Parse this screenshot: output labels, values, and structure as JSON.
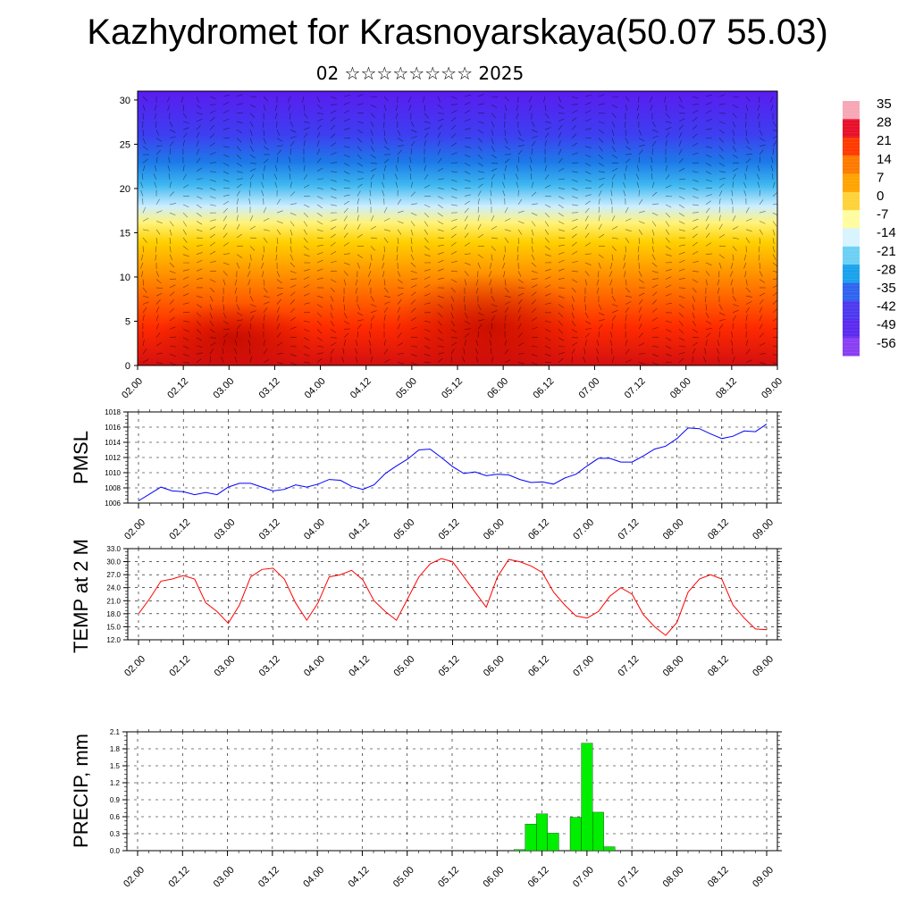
{
  "header": {
    "title": "Kazhydromet for Krasnoyarskaya(50.07 55.03)",
    "subtitle": "02 ☆☆☆☆☆☆☆☆ 2025"
  },
  "chart_data": [
    {
      "type": "heatmap",
      "title": "",
      "x_tick_labels": [
        "02.00",
        "02.12",
        "03.00",
        "03.12",
        "04.00",
        "04.12",
        "05.00",
        "05.12",
        "06.00",
        "06.12",
        "07.00",
        "07.12",
        "08.00",
        "08.12",
        "09.00"
      ],
      "y_tick_labels": [
        "0",
        "5",
        "10",
        "15",
        "20",
        "25",
        "30"
      ],
      "ylim": [
        0,
        31
      ],
      "colorbar_labels": [
        "35",
        "28",
        "21",
        "14",
        "7",
        "0",
        "-7",
        "-14",
        "-21",
        "-28",
        "-35",
        "-42",
        "-49",
        "-56"
      ],
      "colorbar_colors": [
        "#f7a7b5",
        "#e8102a",
        "#ff3a00",
        "#ff7a00",
        "#ffa300",
        "#ffd23a",
        "#fffca0",
        "#d8f4ff",
        "#6cd0f5",
        "#1aa2ec",
        "#2f64f0",
        "#4d39ef",
        "#5b2bf0",
        "#8a3ff3"
      ],
      "description_levels_temperature_profile": [
        {
          "level": 0,
          "temp": 30
        },
        {
          "level": 5,
          "temp": 26
        },
        {
          "level": 10,
          "temp": 18
        },
        {
          "level": 15,
          "temp": 0
        },
        {
          "level": 20,
          "temp": -25
        },
        {
          "level": 25,
          "temp": -50
        },
        {
          "level": 30,
          "temp": -56
        }
      ]
    },
    {
      "type": "line",
      "ylabel": "PMSL",
      "ylim": [
        1006,
        1018
      ],
      "y_tick_labels": [
        "1006",
        "1008",
        "1010",
        "1012",
        "1014",
        "1016",
        "1018"
      ],
      "x_tick_labels": [
        "02.00",
        "02.12",
        "03.00",
        "03.12",
        "04.00",
        "04.12",
        "05.00",
        "05.12",
        "06.00",
        "06.12",
        "07.00",
        "07.12",
        "08.00",
        "08.12",
        "09.00"
      ],
      "color": "#0000ff",
      "x": [
        0,
        3,
        6,
        9,
        12,
        15,
        18,
        21,
        24,
        27,
        30,
        33,
        36,
        39,
        42,
        45,
        48,
        51,
        54,
        57,
        60,
        63,
        66,
        69,
        72,
        75,
        78,
        81,
        84,
        87,
        90,
        93,
        96,
        99,
        102,
        105,
        108,
        111,
        114,
        117,
        120,
        123,
        126,
        129,
        132,
        135,
        138,
        141,
        144,
        147,
        150,
        153,
        156,
        159,
        162,
        165,
        168
      ],
      "y": [
        1006.3,
        1007.2,
        1008.1,
        1007.6,
        1007.5,
        1007.1,
        1007.4,
        1007.1,
        1008.1,
        1008.6,
        1008.6,
        1008.1,
        1007.6,
        1007.8,
        1008.4,
        1008.1,
        1008.5,
        1009.1,
        1009.0,
        1008.2,
        1007.8,
        1008.4,
        1009.9,
        1010.9,
        1011.8,
        1013.0,
        1013.1,
        1012.0,
        1010.8,
        1009.9,
        1010.1,
        1009.6,
        1009.8,
        1009.7,
        1009.1,
        1008.7,
        1008.8,
        1008.5,
        1009.3,
        1009.8,
        1010.9,
        1011.9,
        1011.9,
        1011.4,
        1011.4,
        1012.2,
        1013.1,
        1013.5,
        1014.5,
        1015.9,
        1015.8,
        1015.1,
        1014.5,
        1014.8,
        1015.5,
        1015.4,
        1016.4
      ]
    },
    {
      "type": "line",
      "ylabel": "TEMP at 2 M",
      "ylim": [
        12.0,
        33.0
      ],
      "y_tick_labels": [
        "12.0",
        "15.0",
        "18.0",
        "21.0",
        "24.0",
        "27.0",
        "30.0",
        "33.0"
      ],
      "x_tick_labels": [
        "02.00",
        "02.12",
        "03.00",
        "03.12",
        "04.00",
        "04.12",
        "05.00",
        "05.12",
        "06.00",
        "06.12",
        "07.00",
        "07.12",
        "08.00",
        "08.12",
        "09.00"
      ],
      "color": "#ff0000",
      "x": [
        0,
        3,
        6,
        9,
        12,
        15,
        18,
        21,
        24,
        27,
        30,
        33,
        36,
        39,
        42,
        45,
        48,
        51,
        54,
        57,
        60,
        63,
        66,
        69,
        72,
        75,
        78,
        81,
        84,
        87,
        90,
        93,
        96,
        99,
        102,
        105,
        108,
        111,
        114,
        117,
        120,
        123,
        126,
        129,
        132,
        135,
        138,
        141,
        144,
        147,
        150,
        153,
        156,
        159,
        162,
        165,
        168
      ],
      "y": [
        18.0,
        21.5,
        25.5,
        26.0,
        26.8,
        26.0,
        20.5,
        18.5,
        15.8,
        20.0,
        26.5,
        28.2,
        28.5,
        26.0,
        20.5,
        16.5,
        20.5,
        26.5,
        27.0,
        28.0,
        25.8,
        21.0,
        18.5,
        16.5,
        21.5,
        26.5,
        29.5,
        30.7,
        30.0,
        26.5,
        23.0,
        19.5,
        26.5,
        30.5,
        30.0,
        29.0,
        27.5,
        23.0,
        20.0,
        17.5,
        17.0,
        18.5,
        22.0,
        24.0,
        22.5,
        17.8,
        15.0,
        13.0,
        16.0,
        23.0,
        26.0,
        27.0,
        26.0,
        20.0,
        17.0,
        14.5,
        14.3
      ]
    },
    {
      "type": "bar",
      "ylabel": "PRECIP, mm",
      "ylim": [
        0.0,
        2.1
      ],
      "y_tick_labels": [
        "0.0",
        "0.3",
        "0.6",
        "0.9",
        "1.2",
        "1.5",
        "1.8",
        "2.1"
      ],
      "x_tick_labels": [
        "02.00",
        "02.12",
        "03.00",
        "03.12",
        "04.00",
        "04.12",
        "05.00",
        "05.12",
        "06.00",
        "06.12",
        "07.00",
        "07.12",
        "08.00",
        "08.12",
        "09.00"
      ],
      "color": "#00ee00",
      "x": [
        102,
        105,
        108,
        111,
        117,
        120,
        123,
        126
      ],
      "values": [
        0.02,
        0.47,
        0.65,
        0.31,
        0.59,
        1.9,
        0.68,
        0.07
      ]
    }
  ]
}
